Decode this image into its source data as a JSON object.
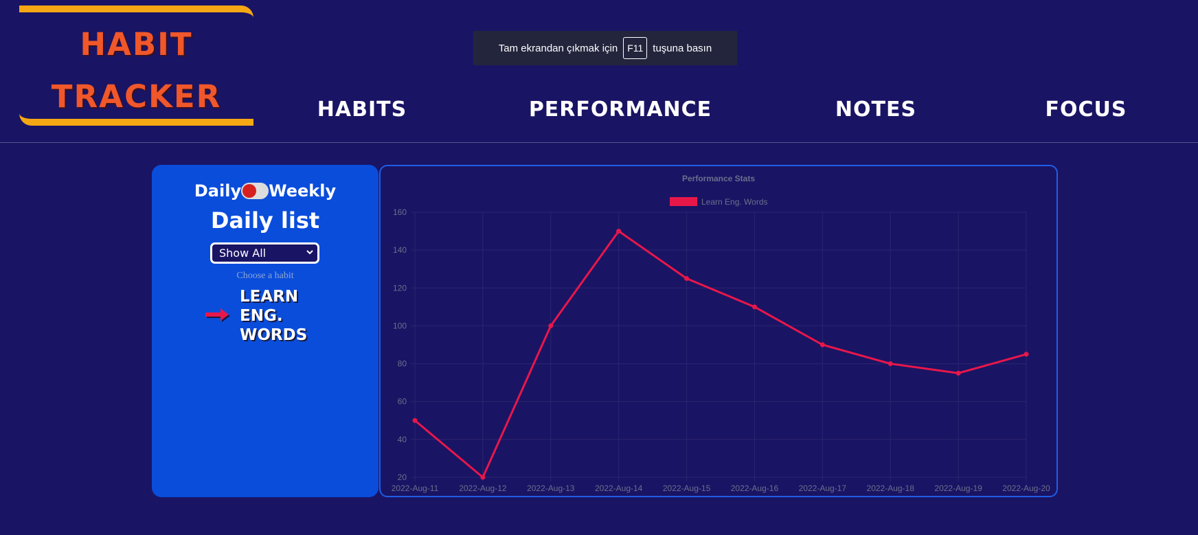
{
  "logo": {
    "line1": "HABIT",
    "line2": "TRACKER"
  },
  "toast": {
    "before": "Tam ekrandan çıkmak için",
    "key": "F11",
    "after": "tuşuna basın"
  },
  "nav": {
    "habits": "HABITS",
    "performance": "PERFORMANCE",
    "notes": "NOTES",
    "focus": "FOCUS"
  },
  "panel": {
    "toggle_left": "Daily",
    "toggle_right": "Weekly",
    "title": "Daily list",
    "filter_value": "Show All",
    "hint": "Choose a habit",
    "habit_lines": [
      "LEARN",
      "ENG.",
      "WORDS"
    ]
  },
  "colors": {
    "background": "#1a1464",
    "panel": "#0a4ddb",
    "accent": "#f5a714",
    "line": "#e8174a"
  },
  "chart_data": {
    "type": "line",
    "title": "Performance Stats",
    "legend_position": "top",
    "categories": [
      "2022-Aug-11",
      "2022-Aug-12",
      "2022-Aug-13",
      "2022-Aug-14",
      "2022-Aug-15",
      "2022-Aug-16",
      "2022-Aug-17",
      "2022-Aug-18",
      "2022-Aug-19",
      "2022-Aug-20"
    ],
    "series": [
      {
        "name": "Learn Eng. Words",
        "values": [
          50,
          20,
          100,
          150,
          125,
          110,
          90,
          80,
          75,
          85
        ]
      }
    ],
    "ylim": [
      20,
      160
    ],
    "yticks": [
      "20",
      "40",
      "60",
      "80",
      "100",
      "120",
      "140",
      "160"
    ],
    "grid": true
  }
}
